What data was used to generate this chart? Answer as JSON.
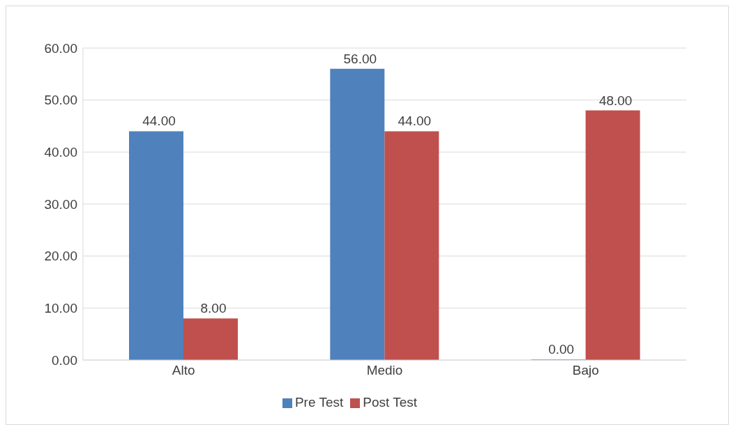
{
  "chart_data": {
    "type": "bar",
    "categories": [
      "Alto",
      "Medio",
      "Bajo"
    ],
    "series": [
      {
        "name": "Pre Test",
        "color": "#4f81bd",
        "values": [
          44,
          56,
          0
        ],
        "value_labels": [
          "44.00",
          "56.00",
          "0.00"
        ]
      },
      {
        "name": "Post Test",
        "color": "#c0504d",
        "values": [
          8,
          44,
          48
        ],
        "value_labels": [
          "8.00",
          "44.00",
          "48.00"
        ]
      }
    ],
    "ylim": [
      0,
      60
    ],
    "yticks": [
      {
        "value": 0,
        "label": "0.00"
      },
      {
        "value": 10,
        "label": "10.00"
      },
      {
        "value": 20,
        "label": "20.00"
      },
      {
        "value": 30,
        "label": "30.00"
      },
      {
        "value": 40,
        "label": "40.00"
      },
      {
        "value": 50,
        "label": "50.00"
      },
      {
        "value": 60,
        "label": "60.00"
      }
    ],
    "grid": "y",
    "legend": "bottom"
  }
}
